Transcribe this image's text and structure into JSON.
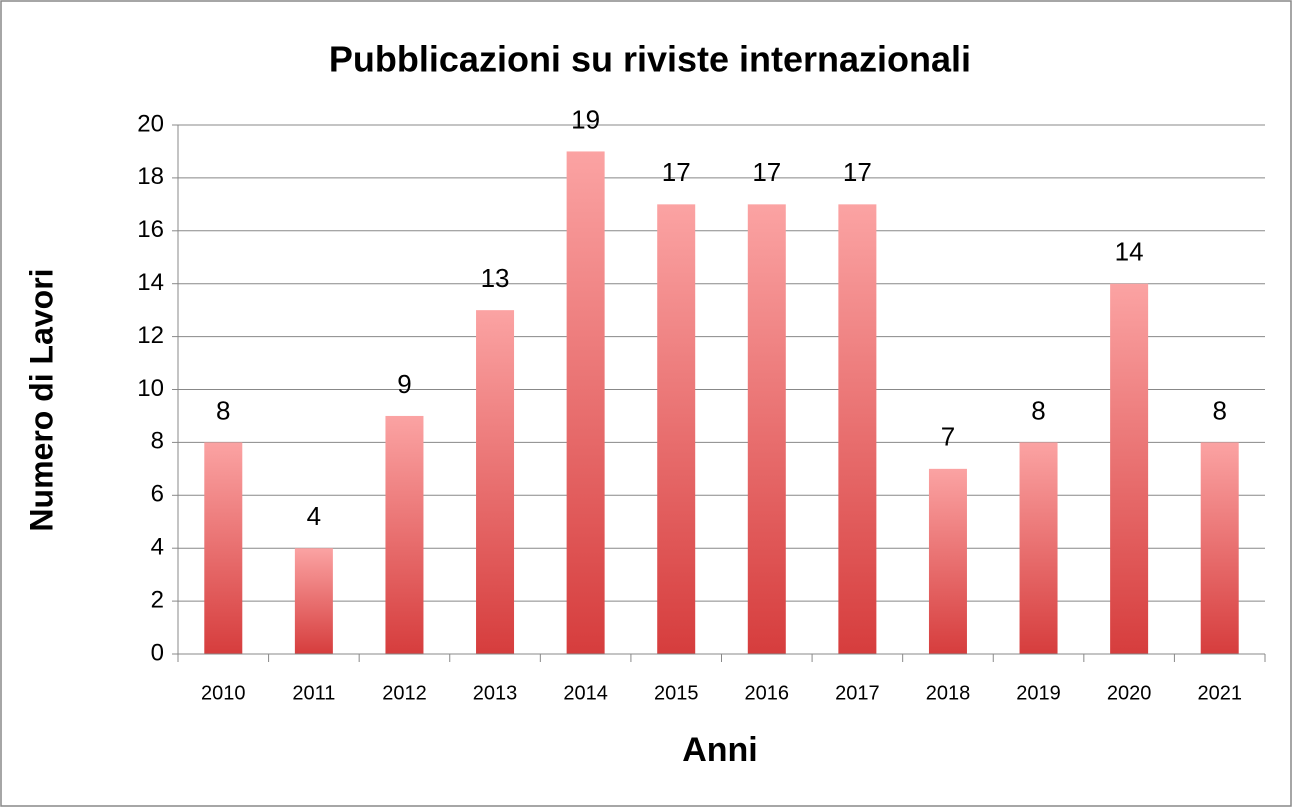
{
  "chart_data": {
    "type": "bar",
    "title": "Pubblicazioni su riviste internazionali",
    "x_label": "Anni",
    "y_label": "Numero di Lavori",
    "categories": [
      "2010",
      "2011",
      "2012",
      "2013",
      "2014",
      "2015",
      "2016",
      "2017",
      "2018",
      "2019",
      "2020",
      "2021"
    ],
    "values": [
      8,
      4,
      9,
      13,
      19,
      17,
      17,
      17,
      7,
      8,
      14,
      8
    ],
    "color": "#d94848",
    "ylim": [
      0,
      20
    ],
    "yticks": [
      0,
      2,
      4,
      6,
      8,
      10,
      12,
      14,
      16,
      18,
      20
    ],
    "grid": true
  }
}
